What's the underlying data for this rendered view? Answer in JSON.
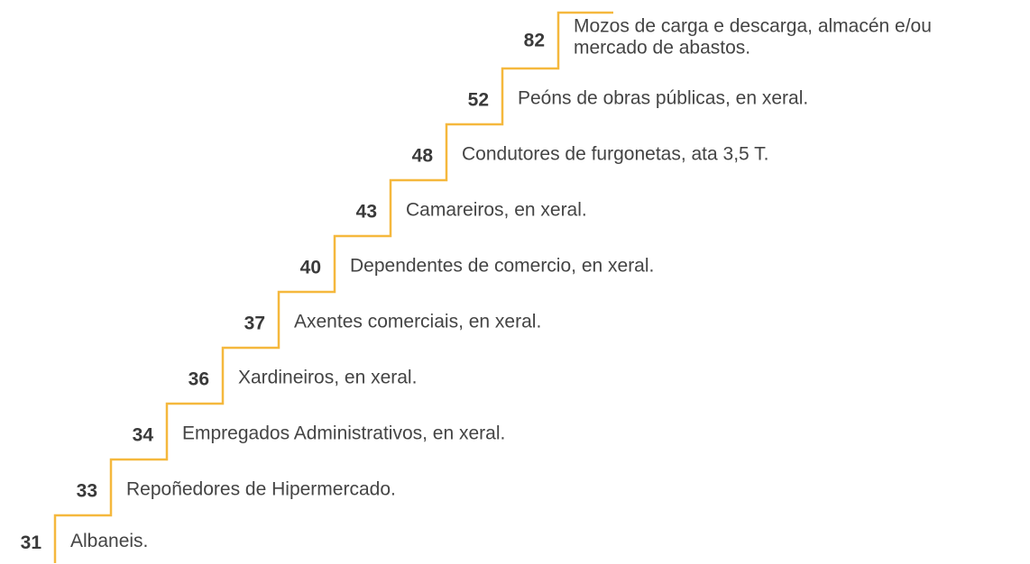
{
  "steps": [
    {
      "value": "31",
      "label": [
        "Albaneis."
      ]
    },
    {
      "value": "33",
      "label": [
        "Repoñedores de Hipermercado."
      ]
    },
    {
      "value": "34",
      "label": [
        "Empregados Administrativos, en xeral."
      ]
    },
    {
      "value": "36",
      "label": [
        "Xardineiros, en xeral."
      ]
    },
    {
      "value": "37",
      "label": [
        "Axentes comerciais, en xeral."
      ]
    },
    {
      "value": "40",
      "label": [
        "Dependentes de comercio, en xeral."
      ]
    },
    {
      "value": "43",
      "label": [
        "Camareiros, en xeral."
      ]
    },
    {
      "value": "48",
      "label": [
        "Condutores de furgonetas, ata 3,5 T."
      ]
    },
    {
      "value": "52",
      "label": [
        "Peóns de obras públicas, en xeral."
      ]
    },
    {
      "value": "82",
      "label": [
        "Mozos de carga e descarga, almacén e/ou",
        "mercado de abastos."
      ]
    }
  ]
}
